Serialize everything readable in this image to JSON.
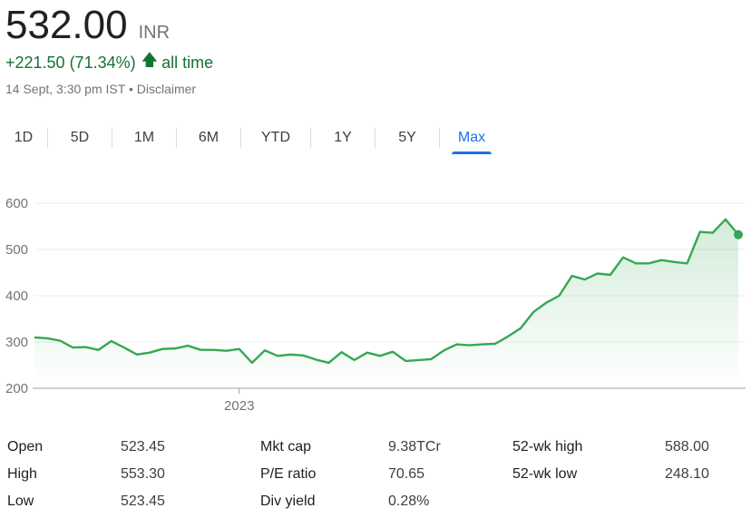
{
  "header": {
    "price": "532.00",
    "currency": "INR",
    "change": "+221.50 (71.34%)",
    "period": "all time",
    "timestamp": "14 Sept, 3:30 pm IST",
    "separator": "•",
    "disclaimer": "Disclaimer",
    "up_color": "#137333"
  },
  "tabs": [
    {
      "label": "1D",
      "active": false
    },
    {
      "label": "5D",
      "active": false
    },
    {
      "label": "1M",
      "active": false
    },
    {
      "label": "6M",
      "active": false
    },
    {
      "label": "YTD",
      "active": false
    },
    {
      "label": "1Y",
      "active": false
    },
    {
      "label": "5Y",
      "active": false
    },
    {
      "label": "Max",
      "active": true
    }
  ],
  "chart_data": {
    "type": "area",
    "line_color": "#34a853",
    "ylim": [
      200,
      620
    ],
    "yticks": [
      200,
      300,
      400,
      500,
      600
    ],
    "xtick_labels": [
      {
        "label": "2023",
        "index": 16
      }
    ],
    "grid": "horizontal",
    "values": [
      310,
      308,
      303,
      288,
      289,
      283,
      302,
      288,
      273,
      277,
      285,
      286,
      292,
      283,
      283,
      281,
      285,
      255,
      282,
      270,
      273,
      271,
      262,
      255,
      278,
      261,
      277,
      270,
      279,
      259,
      261,
      263,
      282,
      295,
      293,
      295,
      296,
      312,
      330,
      365,
      385,
      400,
      443,
      435,
      448,
      445,
      483,
      470,
      470,
      477,
      473,
      470,
      538,
      536,
      565,
      532
    ]
  },
  "stats": {
    "col1": [
      {
        "label": "Open",
        "value": "523.45"
      },
      {
        "label": "High",
        "value": "553.30"
      },
      {
        "label": "Low",
        "value": "523.45"
      }
    ],
    "col2": [
      {
        "label": "Mkt cap",
        "value": "9.38TCr"
      },
      {
        "label": "P/E ratio",
        "value": "70.65"
      },
      {
        "label": "Div yield",
        "value": "0.28%"
      }
    ],
    "col3": [
      {
        "label": "52-wk high",
        "value": "588.00"
      },
      {
        "label": "52-wk low",
        "value": "248.10"
      }
    ]
  }
}
